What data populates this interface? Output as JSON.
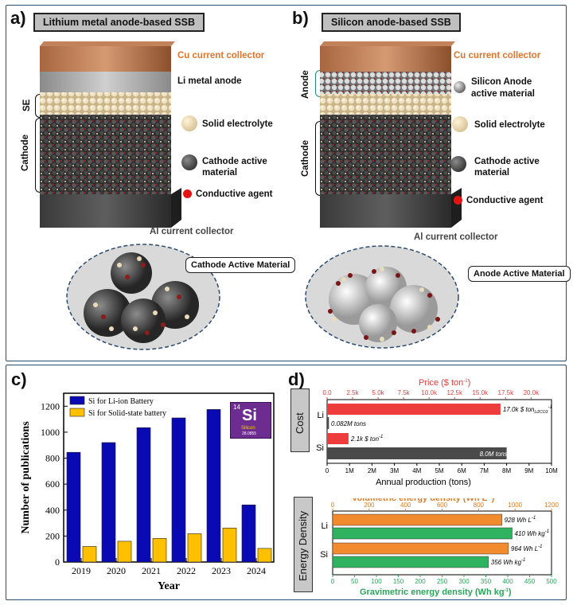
{
  "panel_a": {
    "letter": "a)",
    "title": "Lithium metal anode-based SSB",
    "labels": {
      "cu": "Cu current collector",
      "li": "Li metal anode",
      "se_bracket": "SE",
      "cathode_bracket": "Cathode",
      "se": "Solid electrolyte",
      "cam1": "Cathode active",
      "cam2": "material",
      "cond": "Conductive agent",
      "al": "Al current collector",
      "zoom": "Cathode Active Material"
    }
  },
  "panel_b": {
    "letter": "b)",
    "title": "Silicon anode-based SSB",
    "labels": {
      "cu": "Cu current collector",
      "anode_bracket": "Anode",
      "si1": "Silicon Anode",
      "si2": "active material",
      "cathode_bracket": "Cathode",
      "se": "Solid electrolyte",
      "cam1": "Cathode active",
      "cam2": "material",
      "cond": "Conductive agent",
      "al": "Al current collector",
      "zoom": "Anode Active Material"
    }
  },
  "panel_c": {
    "letter": "c)",
    "element_tile": {
      "number": "14",
      "symbol": "Si",
      "name": "Silicon",
      "mass": "28.0855"
    },
    "chart_data": {
      "type": "bar",
      "xlabel": "Year",
      "ylabel": "Number of publications",
      "categories": [
        "2019",
        "2020",
        "2021",
        "2022",
        "2023",
        "2024"
      ],
      "ylim": [
        0,
        1300
      ],
      "yticks": [
        0,
        200,
        400,
        600,
        800,
        1000,
        1200
      ],
      "legend": "top-left",
      "series": [
        {
          "name": "Si for Li-ion Battery",
          "color": "#0a0ab4",
          "values": [
            845,
            920,
            1035,
            1110,
            1175,
            440
          ]
        },
        {
          "name": "Si for Solid-state battery",
          "color": "#ffc000",
          "values": [
            120,
            160,
            182,
            218,
            262,
            105
          ]
        }
      ]
    }
  },
  "panel_d": {
    "letter": "d)",
    "cost_label": "Cost",
    "energy_label": "Energy Density",
    "chart_data": [
      {
        "type": "bar",
        "orientation": "horizontal",
        "categories": [
          "Li",
          "Si"
        ],
        "top_axis": {
          "label": "Price ($ ton",
          "label_sup": "-1",
          "label_end": ")",
          "ticks": [
            "0.0",
            "2.5k",
            "5.0k",
            "7.5k",
            "10.0k",
            "12.5k",
            "15.0k",
            "17.5k",
            "20.0k"
          ],
          "range": [
            0,
            22000
          ],
          "color": "#e33b3b"
        },
        "bottom_axis": {
          "label": "Annual production (tons)",
          "ticks": [
            "0",
            "1M",
            "2M",
            "3M",
            "4M",
            "5M",
            "6M",
            "7M",
            "8M",
            "9M",
            "10M"
          ],
          "range": [
            0,
            10000000
          ]
        },
        "series": [
          {
            "name": "Price",
            "color": "#ee3b3b",
            "values": [
              17000,
              2100
            ],
            "labels": [
              "17.0k $ ton",
              "2.1k $ ton"
            ],
            "label_subs": [
              "Li2CO3",
              ""
            ],
            "label_sups": [
              "-1",
              "-1"
            ]
          },
          {
            "name": "Annual production",
            "color": "#4a4a4a",
            "values": [
              82000,
              8000000
            ],
            "labels": [
              "0.082M tons",
              "8.0M tons"
            ]
          }
        ]
      },
      {
        "type": "bar",
        "orientation": "horizontal",
        "categories": [
          "Li",
          "Si"
        ],
        "top_axis": {
          "label": "Volumetric energy density (Wh L",
          "label_sup": "-1",
          "label_end": ")",
          "ticks": [
            "0",
            "200",
            "400",
            "600",
            "800",
            "1000",
            "1200"
          ],
          "range": [
            0,
            1200
          ],
          "color": "#e07b22"
        },
        "bottom_axis": {
          "label": "Gravimetric energy density (Wh kg",
          "label_sup": "-1",
          "label_end": ")",
          "ticks": [
            "0",
            "50",
            "100",
            "150",
            "200",
            "250",
            "300",
            "350",
            "400",
            "450",
            "500"
          ],
          "range": [
            0,
            500
          ],
          "color": "#2aa65a"
        },
        "series": [
          {
            "name": "Volumetric",
            "color": "#f28a2e",
            "values": [
              928,
              964
            ],
            "labels": [
              "928 Wh L",
              "964 Wh L"
            ],
            "label_sups": [
              "-1",
              "-1"
            ]
          },
          {
            "name": "Gravimetric",
            "color": "#2fb35f",
            "values": [
              410,
              356
            ],
            "labels": [
              "410 Wh kg",
              "356 Wh kg"
            ],
            "label_sups": [
              "-1",
              "-1"
            ]
          }
        ]
      }
    ]
  }
}
